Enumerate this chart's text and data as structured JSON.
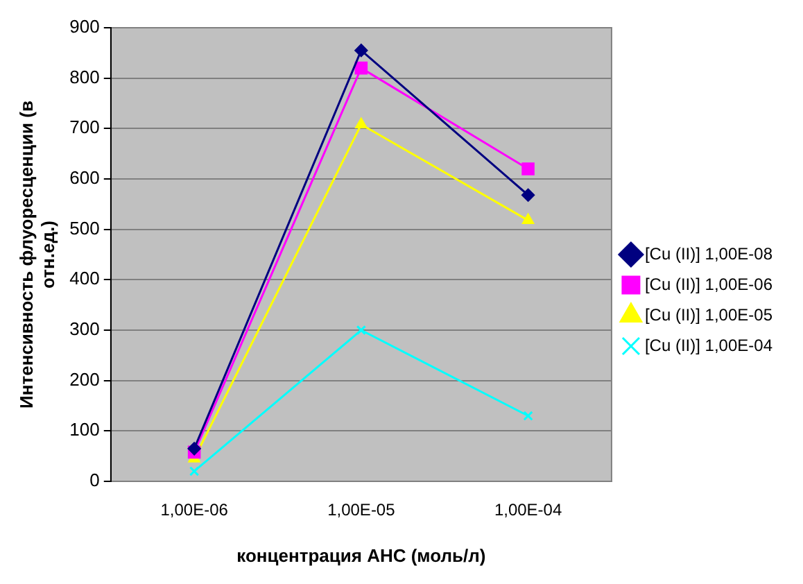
{
  "chart_data": {
    "type": "line",
    "xlabel": "концентрация АНС (моль/л)",
    "ylabel": "Интенсивность флуоресценции (в отн.ед.)",
    "categories": [
      "1,00E-06",
      "1,00E-05",
      "1,00E-04"
    ],
    "series": [
      {
        "name": "[Cu (II)] 1,00E-08",
        "color": "#000080",
        "marker": "diamond",
        "values": [
          65,
          855,
          568
        ]
      },
      {
        "name": "[Cu (II)] 1,00E-06",
        "color": "#ff00ff",
        "marker": "square",
        "values": [
          58,
          820,
          620
        ]
      },
      {
        "name": "[Cu (II)] 1,00E-05",
        "color": "#ffff00",
        "marker": "triangle",
        "values": [
          45,
          708,
          518
        ]
      },
      {
        "name": "[Cu (II)] 1,00E-04",
        "color": "#00ffff",
        "marker": "cross",
        "values": [
          20,
          300,
          130
        ]
      }
    ],
    "ylim": [
      0,
      900
    ],
    "yticks": [
      0,
      100,
      200,
      300,
      400,
      500,
      600,
      700,
      800,
      900
    ],
    "grid": "y",
    "legend": "right"
  }
}
